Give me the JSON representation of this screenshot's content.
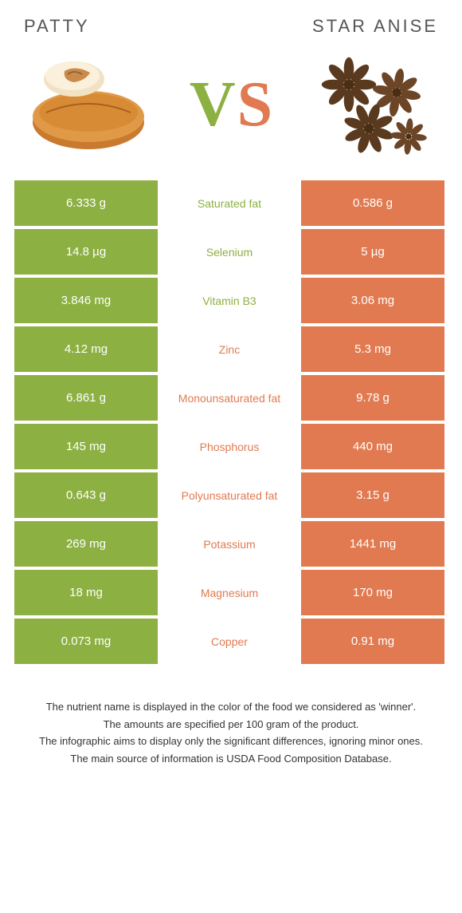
{
  "colors": {
    "left": "#8db042",
    "right": "#e17a50",
    "left_text": "#8db042",
    "right_text": "#e17a50"
  },
  "header": {
    "left_title": "Patty",
    "right_title": "Star Anise"
  },
  "vs": {
    "v": "V",
    "s": "S"
  },
  "rows": [
    {
      "left": "6.333 g",
      "label": "Saturated fat",
      "right": "0.586 g",
      "winner": "left"
    },
    {
      "left": "14.8 µg",
      "label": "Selenium",
      "right": "5 µg",
      "winner": "left"
    },
    {
      "left": "3.846 mg",
      "label": "Vitamin B3",
      "right": "3.06 mg",
      "winner": "left"
    },
    {
      "left": "4.12 mg",
      "label": "Zinc",
      "right": "5.3 mg",
      "winner": "right"
    },
    {
      "left": "6.861 g",
      "label": "Monounsaturated fat",
      "right": "9.78 g",
      "winner": "right"
    },
    {
      "left": "145 mg",
      "label": "Phosphorus",
      "right": "440 mg",
      "winner": "right"
    },
    {
      "left": "0.643 g",
      "label": "Polyunsaturated fat",
      "right": "3.15 g",
      "winner": "right"
    },
    {
      "left": "269 mg",
      "label": "Potassium",
      "right": "1441 mg",
      "winner": "right"
    },
    {
      "left": "18 mg",
      "label": "Magnesium",
      "right": "170 mg",
      "winner": "right"
    },
    {
      "left": "0.073 mg",
      "label": "Copper",
      "right": "0.91 mg",
      "winner": "right"
    }
  ],
  "footer": {
    "line1": "The nutrient name is displayed in the color of the food we considered as 'winner'.",
    "line2": "The amounts are specified per 100 gram of the product.",
    "line3": "The infographic aims to display only the significant differences, ignoring minor ones.",
    "line4": "The main source of information is USDA Food Composition Database."
  }
}
